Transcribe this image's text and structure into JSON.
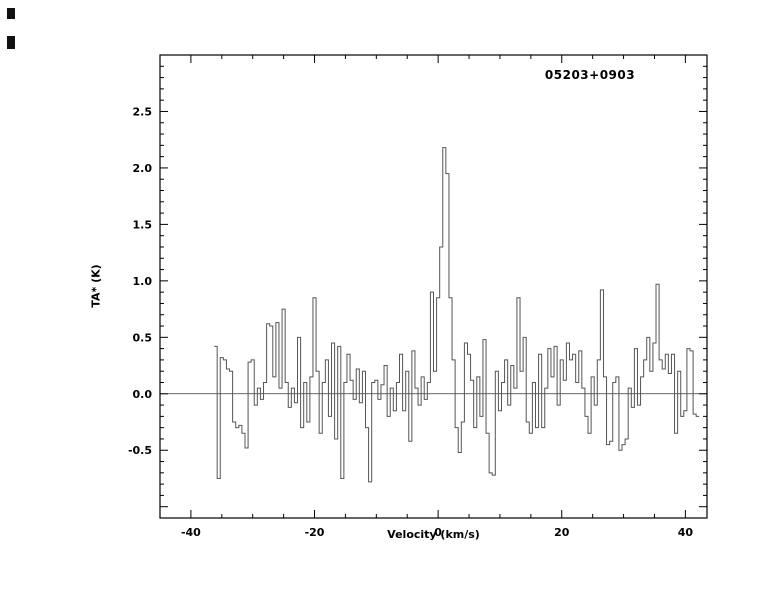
{
  "figure": {
    "background": "#ffffff",
    "colors": {
      "axis": "#000000",
      "trace": "#555555",
      "zero_line": "#333333",
      "text": "#000000"
    }
  },
  "chart_data": {
    "type": "line",
    "style": "histogram-step",
    "title": "05203+0903",
    "xlabel": "Velocity (km/s)",
    "ylabel": "TA* (K)",
    "xlim": [
      -45,
      43.5
    ],
    "ylim": [
      -1.1,
      3.0
    ],
    "grid": false,
    "legend": "none",
    "zero_line": true,
    "x_ticks": [
      -40,
      -20,
      0,
      20,
      40
    ],
    "x_tick_labels": [
      "-40",
      "-20",
      "0",
      "20",
      "40"
    ],
    "y_ticks": [
      -0.5,
      0.0,
      0.5,
      1.0,
      1.5,
      2.0,
      2.5
    ],
    "y_tick_labels": [
      "-0.5",
      "0.0",
      "0.5",
      "1.0",
      "1.5",
      "2.0",
      "2.5"
    ],
    "x_minor_step": 5,
    "y_minor_step": 0.1,
    "x_start": -36,
    "x_step": 0.5,
    "peak": {
      "x": 1.0,
      "y": 2.18
    },
    "values": [
      0.42,
      -0.75,
      0.32,
      0.3,
      0.22,
      0.2,
      -0.25,
      -0.3,
      -0.28,
      -0.35,
      -0.48,
      0.28,
      0.3,
      -0.1,
      0.05,
      -0.05,
      0.1,
      0.62,
      0.6,
      0.15,
      0.63,
      0.05,
      0.75,
      0.1,
      -0.12,
      0.05,
      -0.08,
      0.5,
      -0.3,
      0.1,
      -0.25,
      0.15,
      0.85,
      0.2,
      -0.35,
      0.1,
      0.3,
      -0.2,
      0.45,
      -0.4,
      0.42,
      -0.75,
      0.1,
      0.35,
      0.12,
      -0.05,
      0.22,
      -0.08,
      0.2,
      -0.3,
      -0.78,
      0.1,
      0.12,
      -0.05,
      0.08,
      0.25,
      -0.2,
      0.05,
      -0.15,
      0.1,
      0.35,
      -0.15,
      0.2,
      -0.42,
      0.38,
      0.05,
      -0.1,
      0.15,
      -0.05,
      0.1,
      0.9,
      0.2,
      0.85,
      1.3,
      2.18,
      1.95,
      0.85,
      0.3,
      -0.3,
      -0.52,
      -0.25,
      0.45,
      0.35,
      0.12,
      -0.3,
      0.15,
      -0.2,
      0.48,
      -0.35,
      -0.7,
      -0.72,
      0.2,
      -0.15,
      0.1,
      0.3,
      -0.1,
      0.25,
      0.05,
      0.85,
      0.2,
      0.5,
      -0.25,
      -0.35,
      0.1,
      -0.3,
      0.35,
      -0.3,
      0.05,
      0.4,
      0.15,
      0.42,
      -0.1,
      0.3,
      0.12,
      0.45,
      0.3,
      0.35,
      0.1,
      0.38,
      0.05,
      -0.2,
      -0.35,
      0.15,
      -0.1,
      0.3,
      0.92,
      0.15,
      -0.45,
      -0.42,
      0.1,
      0.15,
      -0.5,
      -0.45,
      -0.4,
      0.05,
      -0.12,
      0.4,
      -0.1,
      0.15,
      0.3,
      0.5,
      0.2,
      0.45,
      0.97,
      0.3,
      0.22,
      0.35,
      0.18,
      0.35,
      -0.35,
      0.2,
      -0.2,
      -0.15,
      0.4,
      0.38,
      -0.18,
      -0.2
    ]
  }
}
